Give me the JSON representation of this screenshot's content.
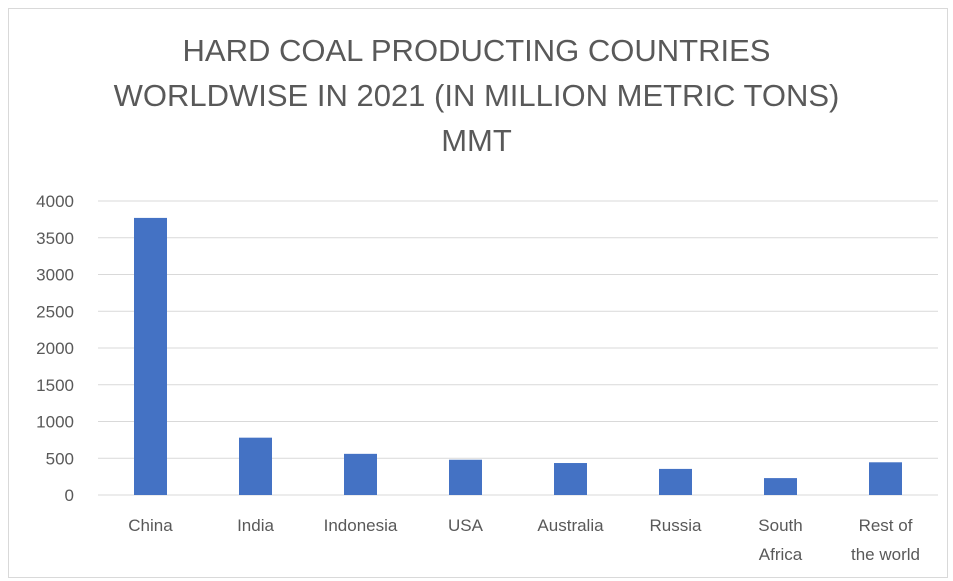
{
  "chart_data": {
    "type": "bar",
    "title_lines": [
      "HARD COAL PRODUCTING COUNTRIES",
      "WORLDWISE IN 2021 (IN MILLION METRIC TONS)",
      "MMT"
    ],
    "categories": [
      [
        "China"
      ],
      [
        "India"
      ],
      [
        "Indonesia"
      ],
      [
        "USA"
      ],
      [
        "Australia"
      ],
      [
        "Russia"
      ],
      [
        "South",
        "Africa"
      ],
      [
        "Rest of",
        "the world"
      ]
    ],
    "values": [
      3770,
      780,
      560,
      480,
      435,
      355,
      230,
      445
    ],
    "ylim": [
      0,
      4000
    ],
    "yticks": [
      "0",
      "500",
      "1000",
      "1500",
      "2000",
      "2500",
      "3000",
      "3500",
      "4000"
    ],
    "grid": true,
    "legend": "none",
    "bar_color": "#4472c4",
    "grid_color": "#d9d9d9",
    "text_color": "#595959"
  }
}
